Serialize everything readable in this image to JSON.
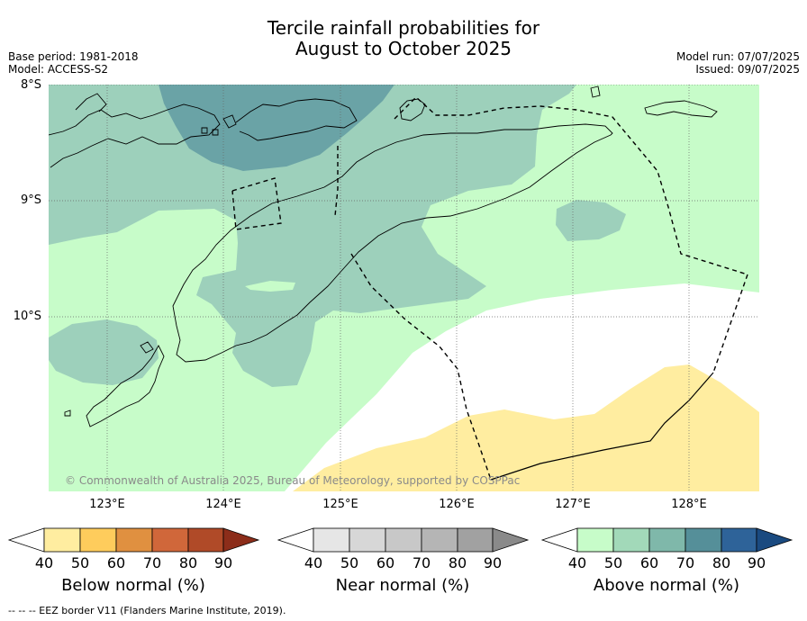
{
  "title_line1": "Tercile rainfall probabilities for",
  "title_line2": "August to October 2025",
  "meta_left": [
    "Base period: 1981-2018",
    "Model: ACCESS-S2"
  ],
  "meta_right": [
    "Model run: 07/07/2025",
    "Issued: 09/07/2025"
  ],
  "lat_labels": [
    "8°S",
    "9°S",
    "10°S"
  ],
  "lon_labels": [
    "123°E",
    "124°E",
    "125°E",
    "126°E",
    "127°E",
    "128°E"
  ],
  "copyright": "© Commonwealth of Australia 2025, Bureau of Meteorology, supported by COSPPac",
  "eez_note": "--  --  -- EEZ border V11 (Flanders Marine Institute, 2019).",
  "colorbars": [
    {
      "label": "Below normal (%)",
      "ticks": [
        "40",
        "50",
        "60",
        "70",
        "80",
        "90"
      ],
      "colors": [
        "#ffeda0",
        "#fecc5c",
        "#e09040",
        "#d0673a",
        "#b04a28",
        "#8c2d1a"
      ]
    },
    {
      "label": "Near normal (%)",
      "ticks": [
        "40",
        "50",
        "60",
        "70",
        "80",
        "90"
      ],
      "colors": [
        "#e6e6e6",
        "#d7d7d7",
        "#c8c8c8",
        "#b5b5b5",
        "#a1a1a1",
        "#8a8a8a"
      ]
    },
    {
      "label": "Above normal (%)",
      "ticks": [
        "40",
        "50",
        "60",
        "70",
        "80",
        "90"
      ],
      "colors": [
        "#c7fcc9",
        "#a2d9b9",
        "#7fb8aa",
        "#558f99",
        "#2e6399",
        "#1a4a80"
      ]
    }
  ],
  "map_colors": {
    "above_40_50": "#c7fcc9",
    "above_50_60": "#9dd0bb",
    "above_60_70": "#6aa3a6",
    "below_40_50": "#ffeda0",
    "no_dominant": "#ffffff"
  },
  "extent": {
    "lon": [
      122.5,
      128.6
    ],
    "lat": [
      -11.5,
      -8.0
    ]
  }
}
